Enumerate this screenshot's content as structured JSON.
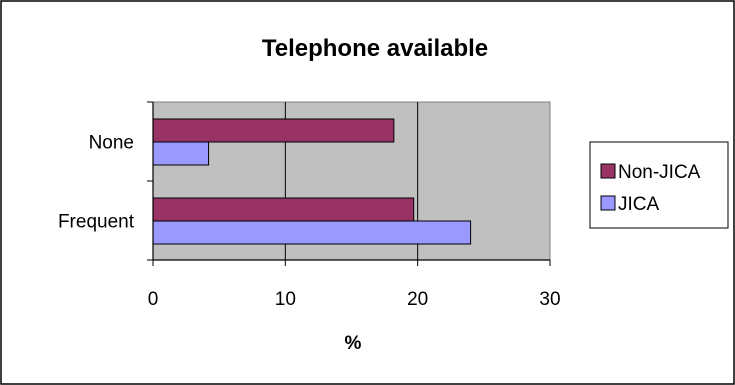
{
  "chart_data": {
    "type": "bar",
    "orientation": "horizontal",
    "title": "Telephone available",
    "xlabel": "%",
    "ylabel": "",
    "categories": [
      "Frequent",
      "None"
    ],
    "xlim": [
      0,
      30
    ],
    "xticks": [
      0,
      10,
      20,
      30
    ],
    "grid": true,
    "legend": "right",
    "series": [
      {
        "name": "Non-JICA",
        "color": "#993366",
        "values": [
          19.7,
          18.2
        ]
      },
      {
        "name": "JICA",
        "color": "#9999FF",
        "values": [
          24.0,
          4.2
        ]
      }
    ]
  }
}
